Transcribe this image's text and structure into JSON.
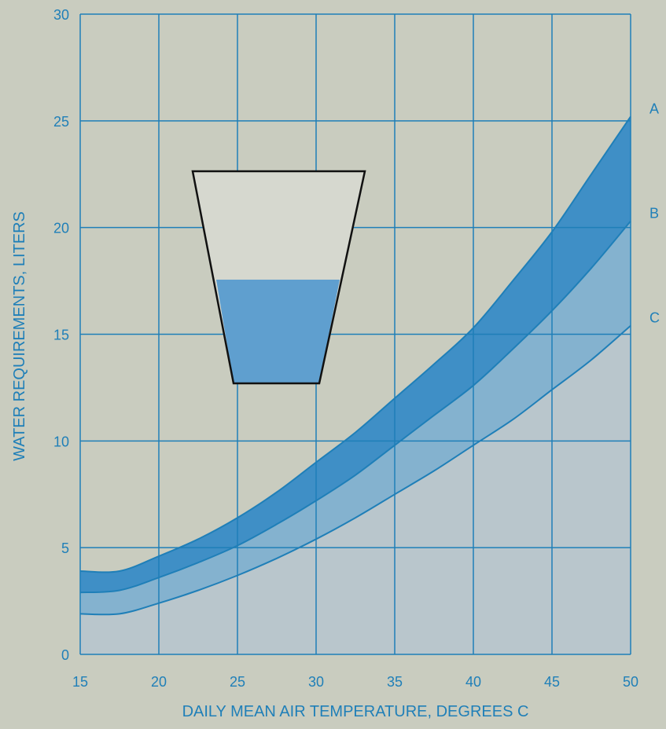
{
  "colors": {
    "background": "#c9ccbf",
    "grid": "#1f7fb8",
    "text": "#1f7fb8",
    "band_dark": "#3f8fc6",
    "band_light": "#84b2cf",
    "under_fill": "#b9c6cc",
    "curve_line": "#1f7fb8",
    "cup_fill": "#5f9fcf",
    "cup_outline": "#111111",
    "cup_body": "#d6d8cf"
  },
  "chart_data": {
    "type": "area",
    "xlabel": "DAILY MEAN AIR TEMPERATURE, DEGREES C",
    "ylabel": "WATER REQUIREMENTS, LITERS",
    "xlim": [
      15,
      50
    ],
    "ylim": [
      0,
      30
    ],
    "grid": true,
    "x_ticks": [
      "15",
      "20",
      "25",
      "30",
      "35",
      "40",
      "45",
      "50"
    ],
    "y_ticks": [
      "0",
      "5",
      "10",
      "15",
      "20",
      "25",
      "30"
    ],
    "x": [
      15,
      17.5,
      20,
      22.5,
      25,
      27.5,
      30,
      32.5,
      35,
      37.5,
      40,
      42.5,
      45,
      47.5,
      50
    ],
    "series": [
      {
        "name": "A",
        "values": [
          3.9,
          3.9,
          4.6,
          5.4,
          6.4,
          7.6,
          9.0,
          10.4,
          12.0,
          13.6,
          15.3,
          17.5,
          19.8,
          22.5,
          25.2
        ]
      },
      {
        "name": "B",
        "values": [
          2.9,
          3.0,
          3.6,
          4.3,
          5.1,
          6.1,
          7.2,
          8.4,
          9.8,
          11.2,
          12.6,
          14.3,
          16.1,
          18.1,
          20.3
        ]
      },
      {
        "name": "C",
        "values": [
          1.9,
          1.9,
          2.4,
          3.0,
          3.7,
          4.5,
          5.4,
          6.4,
          7.5,
          8.6,
          9.8,
          11.0,
          12.4,
          13.8,
          15.4
        ]
      }
    ]
  }
}
